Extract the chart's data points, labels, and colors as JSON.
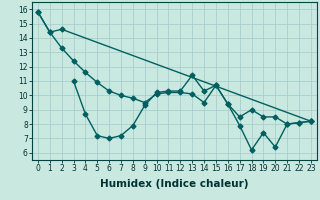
{
  "xlabel": "Humidex (Indice chaleur)",
  "ylabel": "",
  "bg_color": "#c8e8e0",
  "grid_color": "#aacece",
  "line_color": "#006060",
  "xlim": [
    -0.5,
    23.5
  ],
  "ylim": [
    5.5,
    16.5
  ],
  "yticks": [
    6,
    7,
    8,
    9,
    10,
    11,
    12,
    13,
    14,
    15,
    16
  ],
  "xticks": [
    0,
    1,
    2,
    3,
    4,
    5,
    6,
    7,
    8,
    9,
    10,
    11,
    12,
    13,
    14,
    15,
    16,
    17,
    18,
    19,
    20,
    21,
    22,
    23
  ],
  "line1_x": [
    0,
    1,
    2,
    23
  ],
  "line1_y": [
    15.8,
    14.4,
    14.6,
    8.2
  ],
  "line2_x": [
    0,
    1,
    2,
    3,
    4,
    5,
    6,
    7,
    8,
    9,
    10,
    11,
    12,
    13,
    14,
    15,
    16,
    17,
    18,
    19,
    20,
    21,
    22,
    23
  ],
  "line2_y": [
    15.8,
    14.4,
    13.3,
    12.4,
    11.6,
    10.9,
    10.3,
    10.0,
    9.8,
    9.5,
    10.1,
    10.2,
    10.2,
    10.1,
    9.5,
    10.7,
    9.4,
    8.5,
    9.0,
    8.5,
    8.5,
    8.0,
    8.1,
    8.2
  ],
  "line3_x": [
    3,
    4,
    5,
    6,
    7,
    8,
    9,
    10,
    11,
    12,
    13,
    14,
    15,
    16,
    17,
    18,
    19,
    20,
    21,
    22,
    23
  ],
  "line3_y": [
    11.0,
    8.7,
    7.2,
    7.0,
    7.2,
    7.9,
    9.3,
    10.2,
    10.3,
    10.3,
    11.4,
    10.3,
    10.7,
    9.4,
    7.9,
    6.2,
    7.4,
    6.4,
    8.0,
    8.1,
    8.2
  ],
  "marker": "D",
  "markersize": 2.5,
  "linewidth": 1.0,
  "tick_fontsize": 5.5,
  "xlabel_fontsize": 7.5
}
